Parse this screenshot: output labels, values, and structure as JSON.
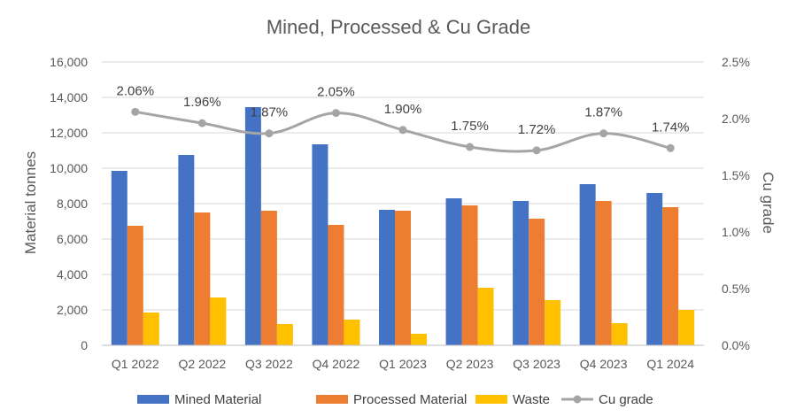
{
  "chart_data": {
    "type": "bar",
    "title": "Mined, Processed & Cu Grade",
    "categories": [
      "Q1 2022",
      "Q2 2022",
      "Q3 2022",
      "Q4 2022",
      "Q1 2023",
      "Q2 2023",
      "Q3 2023",
      "Q4 2023",
      "Q1 2024"
    ],
    "ylabel": "Material tonnes",
    "y2label": "Cu grade",
    "ylim": [
      0,
      16000
    ],
    "y2lim": [
      0,
      2.5
    ],
    "yticks": [
      "0",
      "2,000",
      "4,000",
      "6,000",
      "8,000",
      "10,000",
      "12,000",
      "14,000",
      "16,000"
    ],
    "y2ticks": [
      "0.0%",
      "0.5%",
      "1.0%",
      "1.5%",
      "2.0%",
      "2.5%"
    ],
    "series": [
      {
        "name": "Mined Material",
        "type": "bar",
        "color": "#4472C4",
        "values": [
          9850,
          10750,
          13450,
          11350,
          7650,
          8300,
          8150,
          9100,
          8600
        ]
      },
      {
        "name": "Processed Material",
        "type": "bar",
        "color": "#ED7D31",
        "values": [
          6750,
          7500,
          7600,
          6800,
          7600,
          7900,
          7150,
          8150,
          7800
        ]
      },
      {
        "name": "Waste",
        "type": "bar",
        "color": "#FFC000",
        "values": [
          1850,
          2700,
          1200,
          1450,
          650,
          3250,
          2550,
          1250,
          2000
        ]
      },
      {
        "name": "Cu grade",
        "type": "line",
        "axis": "secondary",
        "color": "#A5A5A5",
        "values": [
          2.06,
          1.96,
          1.87,
          2.05,
          1.9,
          1.75,
          1.72,
          1.87,
          1.74
        ],
        "labels": [
          "2.06%",
          "1.96%",
          "1.87%",
          "2.05%",
          "1.90%",
          "1.75%",
          "1.72%",
          "1.87%",
          "1.74%"
        ]
      }
    ],
    "legend_position": "bottom"
  }
}
